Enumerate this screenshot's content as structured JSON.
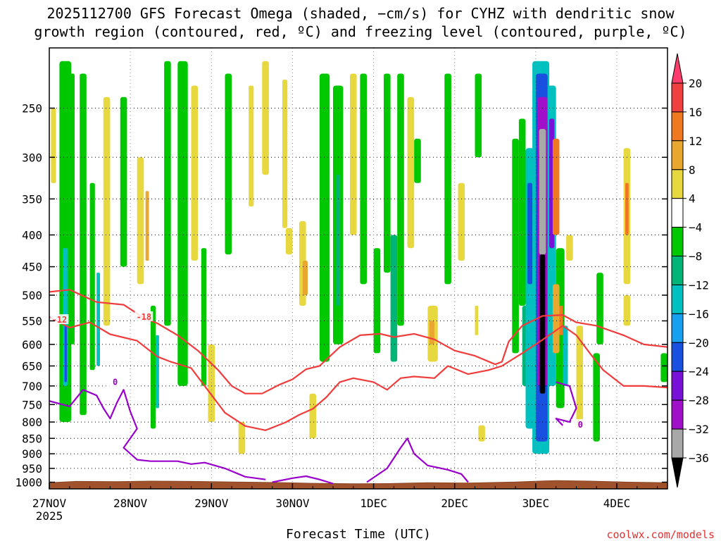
{
  "chart_data": {
    "type": "heatmap",
    "title_line1": "2025112700 GFS Forecast Omega (shaded, −cm/s) for CYHZ with dendritic snow",
    "title_line2": "growth region (contoured, red, ºC) and freezing level (contoured, purple, ºC)",
    "xlabel": "Forecast Time (UTC)",
    "credit": "coolwx.com/models",
    "x_ticks": [
      {
        "label": "27NOV",
        "hour": 0
      },
      {
        "label": "28NOV",
        "hour": 24
      },
      {
        "label": "29NOV",
        "hour": 48
      },
      {
        "label": "30NOV",
        "hour": 72
      },
      {
        "label": "1DEC",
        "hour": 96
      },
      {
        "label": "2DEC",
        "hour": 120
      },
      {
        "label": "3DEC",
        "hour": 144
      },
      {
        "label": "4DEC",
        "hour": 168
      }
    ],
    "x_year_label": "2025",
    "xlim_hours": [
      0,
      183
    ],
    "y_label_levels": [
      250,
      300,
      350,
      400,
      450,
      500,
      550,
      600,
      650,
      700,
      750,
      800,
      850,
      900,
      950,
      1000
    ],
    "y_grid_levels": [
      250,
      300,
      350,
      400,
      450,
      500,
      550,
      600,
      650,
      700,
      750,
      800,
      850,
      900,
      950
    ],
    "ylim_hpa": [
      200,
      1025
    ],
    "ground_top_hpa": [
      [
        0,
        1002
      ],
      [
        8,
        997
      ],
      [
        20,
        998
      ],
      [
        30,
        996
      ],
      [
        42,
        997
      ],
      [
        55,
        999
      ],
      [
        66,
        1001
      ],
      [
        78,
        1004
      ],
      [
        90,
        1006
      ],
      [
        100,
        1005
      ],
      [
        112,
        1002
      ],
      [
        124,
        1003
      ],
      [
        138,
        999
      ],
      [
        150,
        994
      ],
      [
        160,
        996
      ],
      [
        172,
        1000
      ],
      [
        183,
        1002
      ]
    ],
    "colorbar": {
      "labels": [
        "20",
        "16",
        "12",
        "8",
        "4",
        "−4",
        "−8",
        "−12",
        "−16",
        "−20",
        "−24",
        "−28",
        "−32",
        "−36"
      ],
      "colors": [
        "#ff3c6c",
        "#f04040",
        "#f07820",
        "#e8a830",
        "#e8d840",
        "#ffffff",
        "#00c800",
        "#00b478",
        "#00c0c0",
        "#18a0f0",
        "#1850e0",
        "#7810d8",
        "#a010c8",
        "#a8a8a8",
        "#000000"
      ]
    },
    "omega_shading": [
      {
        "t0": 3,
        "t1": 6.5,
        "p0": 210,
        "p1": 800,
        "v": -8
      },
      {
        "t0": 4,
        "t1": 5.5,
        "p0": 420,
        "p1": 700,
        "v": -16
      },
      {
        "t0": 4.5,
        "t1": 5.2,
        "p0": 560,
        "p1": 690,
        "v": -24
      },
      {
        "t0": 6,
        "t1": 7.5,
        "p0": 220,
        "p1": 600,
        "v": -8
      },
      {
        "t0": 0.5,
        "t1": 2,
        "p0": 250,
        "p1": 330,
        "v": 6
      },
      {
        "t0": 9,
        "t1": 11,
        "p0": 220,
        "p1": 780,
        "v": -6
      },
      {
        "t0": 12,
        "t1": 13.5,
        "p0": 330,
        "p1": 660,
        "v": -8
      },
      {
        "t0": 14,
        "t1": 15,
        "p0": 460,
        "p1": 650,
        "v": -14
      },
      {
        "t0": 16,
        "t1": 18,
        "p0": 240,
        "p1": 560,
        "v": 5
      },
      {
        "t0": 21,
        "t1": 23,
        "p0": 240,
        "p1": 450,
        "v": -6
      },
      {
        "t0": 26,
        "t1": 28,
        "p0": 300,
        "p1": 480,
        "v": 5
      },
      {
        "t0": 28.5,
        "t1": 29.5,
        "p0": 340,
        "p1": 440,
        "v": 9
      },
      {
        "t0": 30,
        "t1": 31.5,
        "p0": 520,
        "p1": 820,
        "v": -8
      },
      {
        "t0": 31.5,
        "t1": 32.5,
        "p0": 580,
        "p1": 760,
        "v": -14
      },
      {
        "t0": 34,
        "t1": 36,
        "p0": 210,
        "p1": 560,
        "v": -6
      },
      {
        "t0": 38,
        "t1": 41,
        "p0": 210,
        "p1": 700,
        "v": -6
      },
      {
        "t0": 42,
        "t1": 44,
        "p0": 230,
        "p1": 440,
        "v": 5
      },
      {
        "t0": 45,
        "t1": 46.5,
        "p0": 420,
        "p1": 700,
        "v": -6
      },
      {
        "t0": 47,
        "t1": 49,
        "p0": 600,
        "p1": 800,
        "v": 5
      },
      {
        "t0": 52,
        "t1": 54,
        "p0": 220,
        "p1": 430,
        "v": -6
      },
      {
        "t0": 56,
        "t1": 58,
        "p0": 800,
        "p1": 900,
        "v": 6
      },
      {
        "t0": 59,
        "t1": 60.5,
        "p0": 230,
        "p1": 360,
        "v": 5
      },
      {
        "t0": 63,
        "t1": 65,
        "p0": 210,
        "p1": 320,
        "v": 5
      },
      {
        "t0": 69,
        "t1": 70.5,
        "p0": 225,
        "p1": 390,
        "v": 6
      },
      {
        "t0": 70,
        "t1": 72,
        "p0": 390,
        "p1": 430,
        "v": 5
      },
      {
        "t0": 74,
        "t1": 76,
        "p0": 380,
        "p1": 520,
        "v": 6
      },
      {
        "t0": 75,
        "t1": 76.5,
        "p0": 440,
        "p1": 500,
        "v": 9
      },
      {
        "t0": 77,
        "t1": 79,
        "p0": 720,
        "p1": 850,
        "v": 5
      },
      {
        "t0": 80,
        "t1": 83,
        "p0": 220,
        "p1": 640,
        "v": -6
      },
      {
        "t0": 84,
        "t1": 87,
        "p0": 230,
        "p1": 600,
        "v": -8
      },
      {
        "t0": 85,
        "t1": 86,
        "p0": 320,
        "p1": 520,
        "v": -12
      },
      {
        "t0": 89,
        "t1": 91,
        "p0": 220,
        "p1": 400,
        "v": 5
      },
      {
        "t0": 92,
        "t1": 94,
        "p0": 220,
        "p1": 480,
        "v": -6
      },
      {
        "t0": 96,
        "t1": 98,
        "p0": 420,
        "p1": 620,
        "v": -6
      },
      {
        "t0": 99,
        "t1": 101,
        "p0": 220,
        "p1": 460,
        "v": -8
      },
      {
        "t0": 101,
        "t1": 103,
        "p0": 400,
        "p1": 640,
        "v": -10
      },
      {
        "t0": 103,
        "t1": 105,
        "p0": 220,
        "p1": 560,
        "v": -8
      },
      {
        "t0": 106,
        "t1": 108,
        "p0": 240,
        "p1": 420,
        "v": 5
      },
      {
        "t0": 108,
        "t1": 110,
        "p0": 280,
        "p1": 330,
        "v": -6
      },
      {
        "t0": 112,
        "t1": 115,
        "p0": 520,
        "p1": 640,
        "v": 5
      },
      {
        "t0": 112.5,
        "t1": 114,
        "p0": 550,
        "p1": 600,
        "v": 9
      },
      {
        "t0": 117,
        "t1": 119,
        "p0": 220,
        "p1": 480,
        "v": -6
      },
      {
        "t0": 121,
        "t1": 123,
        "p0": 330,
        "p1": 440,
        "v": 5
      },
      {
        "t0": 126,
        "t1": 128,
        "p0": 220,
        "p1": 300,
        "v": -6
      },
      {
        "t0": 126,
        "t1": 127,
        "p0": 520,
        "p1": 580,
        "v": 5
      },
      {
        "t0": 127,
        "t1": 129,
        "p0": 810,
        "p1": 860,
        "v": 5
      },
      {
        "t0": 137,
        "t1": 139,
        "p0": 280,
        "p1": 620,
        "v": -6
      },
      {
        "t0": 139,
        "t1": 141,
        "p0": 260,
        "p1": 520,
        "v": -8
      },
      {
        "t0": 140,
        "t1": 142,
        "p0": 520,
        "p1": 700,
        "v": -12
      },
      {
        "t0": 141,
        "t1": 143.5,
        "p0": 290,
        "p1": 820,
        "v": -16
      },
      {
        "t0": 141.5,
        "t1": 143,
        "p0": 330,
        "p1": 480,
        "v": -22
      },
      {
        "t0": 143,
        "t1": 148,
        "p0": 210,
        "p1": 900,
        "v": -14
      },
      {
        "t0": 144,
        "t1": 147.5,
        "p0": 220,
        "p1": 860,
        "v": -22
      },
      {
        "t0": 144.5,
        "t1": 147.5,
        "p0": 240,
        "p1": 700,
        "v": -30
      },
      {
        "t0": 145,
        "t1": 147,
        "p0": 270,
        "p1": 430,
        "v": -34
      },
      {
        "t0": 145.2,
        "t1": 146.8,
        "p0": 430,
        "p1": 720,
        "v": -40
      },
      {
        "t0": 147.5,
        "t1": 150,
        "p0": 230,
        "p1": 700,
        "v": -16
      },
      {
        "t0": 148,
        "t1": 149.5,
        "p0": 260,
        "p1": 420,
        "v": -26
      },
      {
        "t0": 149,
        "t1": 151,
        "p0": 280,
        "p1": 400,
        "v": 13
      },
      {
        "t0": 150,
        "t1": 152.5,
        "p0": 420,
        "p1": 760,
        "v": -8
      },
      {
        "t0": 149,
        "t1": 151,
        "p0": 480,
        "p1": 620,
        "v": 9
      },
      {
        "t0": 151,
        "t1": 152,
        "p0": 520,
        "p1": 580,
        "v": 13
      },
      {
        "t0": 152,
        "t1": 153.5,
        "p0": 560,
        "p1": 700,
        "v": -16
      },
      {
        "t0": 153,
        "t1": 155,
        "p0": 400,
        "p1": 440,
        "v": 5
      },
      {
        "t0": 156,
        "t1": 158,
        "p0": 560,
        "p1": 820,
        "v": 5
      },
      {
        "t0": 161,
        "t1": 163,
        "p0": 620,
        "p1": 860,
        "v": -6
      },
      {
        "t0": 162,
        "t1": 164,
        "p0": 460,
        "p1": 600,
        "v": -8
      },
      {
        "t0": 170,
        "t1": 172,
        "p0": 290,
        "p1": 480,
        "v": 5
      },
      {
        "t0": 170.5,
        "t1": 171.5,
        "p0": 330,
        "p1": 400,
        "v": 13
      },
      {
        "t0": 170,
        "t1": 172,
        "p0": 500,
        "p1": 560,
        "v": 5
      },
      {
        "t0": 181,
        "t1": 183,
        "p0": 620,
        "p1": 690,
        "v": -6
      }
    ],
    "red_contours": [
      {
        "label": "-18",
        "label_hour": 28,
        "label_hpa": 542,
        "points": [
          [
            0,
            494
          ],
          [
            6,
            490
          ],
          [
            14,
            513
          ],
          [
            22,
            518
          ],
          [
            28,
            544
          ],
          [
            32,
            555
          ],
          [
            38,
            580
          ],
          [
            44,
            614
          ],
          [
            50,
            660
          ],
          [
            54,
            700
          ],
          [
            58,
            720
          ],
          [
            63,
            720
          ],
          [
            68,
            697
          ],
          [
            72,
            683
          ],
          [
            76,
            658
          ],
          [
            80,
            650
          ],
          [
            86,
            606
          ],
          [
            92,
            580
          ],
          [
            98,
            577
          ],
          [
            102,
            584
          ],
          [
            108,
            577
          ],
          [
            114,
            589
          ],
          [
            120,
            614
          ],
          [
            126,
            626
          ],
          [
            132,
            646
          ],
          [
            134,
            640
          ],
          [
            136,
            594
          ],
          [
            140,
            560
          ],
          [
            146,
            540
          ],
          [
            152,
            538
          ],
          [
            156,
            553
          ],
          [
            162,
            560
          ],
          [
            170,
            580
          ],
          [
            176,
            600
          ],
          [
            183,
            606
          ]
        ]
      },
      {
        "label": "-12",
        "label_hour": 3,
        "label_hpa": 548,
        "points": [
          [
            0,
            542
          ],
          [
            6,
            564
          ],
          [
            12,
            553
          ],
          [
            18,
            578
          ],
          [
            26,
            592
          ],
          [
            32,
            628
          ],
          [
            36,
            640
          ],
          [
            42,
            655
          ],
          [
            46,
            700
          ],
          [
            52,
            773
          ],
          [
            58,
            812
          ],
          [
            64,
            825
          ],
          [
            70,
            801
          ],
          [
            74,
            779
          ],
          [
            78,
            762
          ],
          [
            82,
            730
          ],
          [
            86,
            690
          ],
          [
            90,
            680
          ],
          [
            96,
            690
          ],
          [
            100,
            710
          ],
          [
            104,
            680
          ],
          [
            108,
            676
          ],
          [
            114,
            680
          ],
          [
            118,
            650
          ],
          [
            124,
            670
          ],
          [
            130,
            660
          ],
          [
            134,
            650
          ],
          [
            140,
            620
          ],
          [
            146,
            590
          ],
          [
            152,
            560
          ],
          [
            156,
            580
          ],
          [
            160,
            620
          ],
          [
            164,
            660
          ],
          [
            170,
            700
          ],
          [
            176,
            700
          ],
          [
            183,
            704
          ]
        ]
      }
    ],
    "purple_contours": [
      {
        "label": "0",
        "label_hour": 19.5,
        "label_hpa": 690,
        "points": [
          [
            0,
            740
          ],
          [
            6,
            755
          ],
          [
            10,
            710
          ],
          [
            14,
            725
          ],
          [
            16,
            760
          ],
          [
            18,
            790
          ],
          [
            20,
            745
          ],
          [
            22,
            710
          ],
          [
            24,
            770
          ],
          [
            26,
            820
          ],
          [
            22,
            880
          ],
          [
            26,
            920
          ],
          [
            30,
            925
          ],
          [
            38,
            925
          ],
          [
            42,
            935
          ],
          [
            46,
            930
          ],
          [
            52,
            950
          ],
          [
            58,
            980
          ],
          [
            64,
            990
          ]
        ]
      },
      {
        "label": "",
        "label_hour": 0,
        "label_hpa": 0,
        "points": [
          [
            66,
            1000
          ],
          [
            72,
            985
          ],
          [
            76,
            978
          ],
          [
            80,
            990
          ],
          [
            84,
            1005
          ]
        ]
      },
      {
        "label": "",
        "label_hour": 0,
        "label_hpa": 0,
        "points": [
          [
            94,
            1000
          ],
          [
            100,
            950
          ],
          [
            104,
            880
          ],
          [
            106,
            850
          ],
          [
            108,
            900
          ],
          [
            112,
            940
          ],
          [
            118,
            955
          ],
          [
            122,
            970
          ],
          [
            124,
            1000
          ]
        ]
      },
      {
        "label": "0",
        "label_hour": 157.2,
        "label_hpa": 808,
        "points": [
          [
            150,
            690
          ],
          [
            154,
            700
          ],
          [
            156,
            760
          ],
          [
            154,
            800
          ],
          [
            150,
            790
          ],
          [
            152,
            810
          ]
        ]
      }
    ]
  }
}
